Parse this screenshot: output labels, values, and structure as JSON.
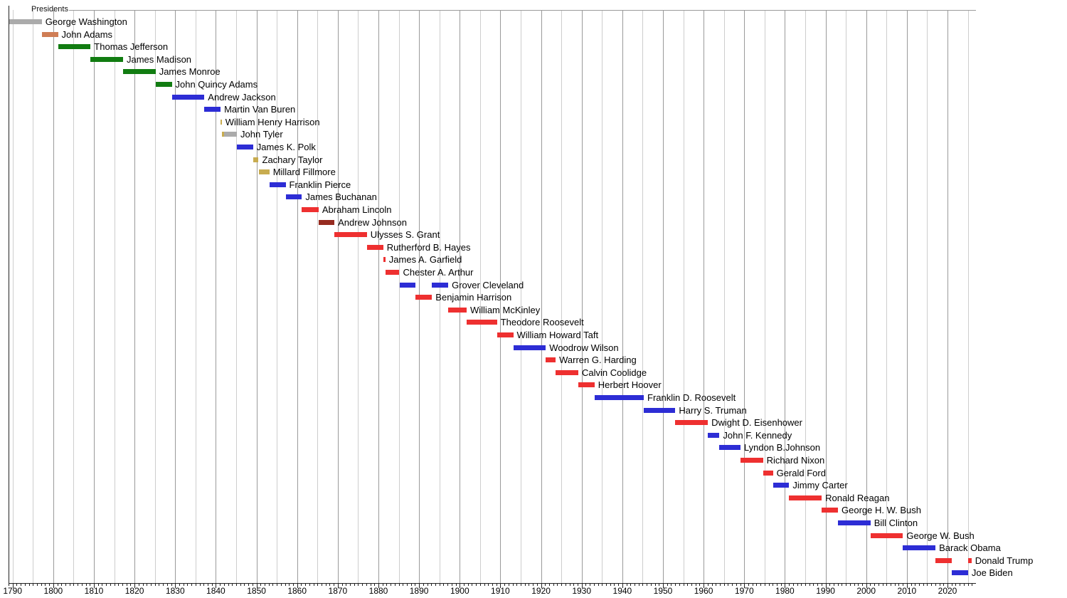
{
  "title": "Presidents",
  "axis": {
    "x_tick_labels": [
      "1790",
      "1800",
      "1810",
      "1820",
      "1830",
      "1840",
      "1850",
      "1860",
      "1870",
      "1880",
      "1890",
      "1900",
      "1910",
      "1920",
      "1930",
      "1940",
      "1950",
      "1960",
      "1970",
      "1980",
      "1990",
      "2000",
      "2010",
      "2020"
    ],
    "gridline_interval_years": 5,
    "minor_tick_interval_years": 1,
    "x_range_years": [
      1789,
      2027
    ]
  },
  "party_colors": {
    "independent": "#ababab",
    "federalist": "#cf7d55",
    "democratic_republican": "#117c11",
    "democratic": "#2d2dd5",
    "whig": "#c8ac50",
    "republican": "#ee3030",
    "national_union": "#962b20"
  },
  "chart_data": {
    "type": "bar",
    "layout": "gantt-timeline",
    "title": "Presidents",
    "xlabel": "",
    "ylabel": "",
    "x_range": [
      1789,
      2027
    ],
    "x_major_ticks": [
      1790,
      1800,
      1810,
      1820,
      1830,
      1840,
      1850,
      1860,
      1870,
      1880,
      1890,
      1900,
      1910,
      1920,
      1930,
      1940,
      1950,
      1960,
      1970,
      1980,
      1990,
      2000,
      2010,
      2020
    ],
    "grid": true,
    "rows": [
      {
        "name": "George Washington",
        "segments": [
          {
            "start": 1789.1,
            "end": 1797.17,
            "party": "independent"
          }
        ]
      },
      {
        "name": "John Adams",
        "segments": [
          {
            "start": 1797.17,
            "end": 1801.17,
            "party": "federalist"
          }
        ]
      },
      {
        "name": "Thomas Jefferson",
        "segments": [
          {
            "start": 1801.17,
            "end": 1809.17,
            "party": "democratic_republican"
          }
        ]
      },
      {
        "name": "James Madison",
        "segments": [
          {
            "start": 1809.17,
            "end": 1817.17,
            "party": "democratic_republican"
          }
        ]
      },
      {
        "name": "James Monroe",
        "segments": [
          {
            "start": 1817.17,
            "end": 1825.17,
            "party": "democratic_republican"
          }
        ]
      },
      {
        "name": "John Quincy Adams",
        "segments": [
          {
            "start": 1825.17,
            "end": 1829.17,
            "party": "democratic_republican"
          }
        ]
      },
      {
        "name": "Andrew Jackson",
        "segments": [
          {
            "start": 1829.17,
            "end": 1837.17,
            "party": "democratic"
          }
        ]
      },
      {
        "name": "Martin Van Buren",
        "segments": [
          {
            "start": 1837.17,
            "end": 1841.17,
            "party": "democratic"
          }
        ]
      },
      {
        "name": "William Henry Harrison",
        "segments": [
          {
            "start": 1841.17,
            "end": 1841.45,
            "party": "whig"
          }
        ]
      },
      {
        "name": "John Tyler",
        "segments": [
          {
            "start": 1841.45,
            "end": 1842.1,
            "party": "whig"
          },
          {
            "start": 1842.1,
            "end": 1845.17,
            "party": "independent"
          }
        ]
      },
      {
        "name": "James K. Polk",
        "segments": [
          {
            "start": 1845.17,
            "end": 1849.17,
            "party": "democratic"
          }
        ]
      },
      {
        "name": "Zachary Taylor",
        "segments": [
          {
            "start": 1849.17,
            "end": 1850.52,
            "party": "whig"
          }
        ]
      },
      {
        "name": "Millard Fillmore",
        "segments": [
          {
            "start": 1850.52,
            "end": 1853.17,
            "party": "whig"
          }
        ]
      },
      {
        "name": "Franklin Pierce",
        "segments": [
          {
            "start": 1853.17,
            "end": 1857.17,
            "party": "democratic"
          }
        ]
      },
      {
        "name": "James Buchanan",
        "segments": [
          {
            "start": 1857.17,
            "end": 1861.17,
            "party": "democratic"
          }
        ]
      },
      {
        "name": "Abraham Lincoln",
        "segments": [
          {
            "start": 1861.17,
            "end": 1865.29,
            "party": "republican"
          }
        ]
      },
      {
        "name": "Andrew Johnson",
        "segments": [
          {
            "start": 1865.29,
            "end": 1869.17,
            "party": "national_union"
          }
        ]
      },
      {
        "name": "Ulysses S. Grant",
        "segments": [
          {
            "start": 1869.17,
            "end": 1877.17,
            "party": "republican"
          }
        ]
      },
      {
        "name": "Rutherford B. Hayes",
        "segments": [
          {
            "start": 1877.17,
            "end": 1881.17,
            "party": "republican"
          }
        ]
      },
      {
        "name": "James A. Garfield",
        "segments": [
          {
            "start": 1881.17,
            "end": 1881.72,
            "party": "republican"
          }
        ]
      },
      {
        "name": "Chester A. Arthur",
        "segments": [
          {
            "start": 1881.72,
            "end": 1885.17,
            "party": "republican"
          }
        ]
      },
      {
        "name": "Grover Cleveland",
        "segments": [
          {
            "start": 1885.17,
            "end": 1889.17,
            "party": "democratic"
          },
          {
            "start": 1893.17,
            "end": 1897.17,
            "party": "democratic"
          }
        ]
      },
      {
        "name": "Benjamin Harrison",
        "segments": [
          {
            "start": 1889.17,
            "end": 1893.17,
            "party": "republican"
          }
        ]
      },
      {
        "name": "William McKinley",
        "segments": [
          {
            "start": 1897.17,
            "end": 1901.7,
            "party": "republican"
          }
        ]
      },
      {
        "name": "Theodore Roosevelt",
        "segments": [
          {
            "start": 1901.7,
            "end": 1909.17,
            "party": "republican"
          }
        ]
      },
      {
        "name": "William Howard Taft",
        "segments": [
          {
            "start": 1909.17,
            "end": 1913.17,
            "party": "republican"
          }
        ]
      },
      {
        "name": "Woodrow Wilson",
        "segments": [
          {
            "start": 1913.17,
            "end": 1921.17,
            "party": "democratic"
          }
        ]
      },
      {
        "name": "Warren G. Harding",
        "segments": [
          {
            "start": 1921.17,
            "end": 1923.59,
            "party": "republican"
          }
        ]
      },
      {
        "name": "Calvin Coolidge",
        "segments": [
          {
            "start": 1923.59,
            "end": 1929.17,
            "party": "republican"
          }
        ]
      },
      {
        "name": "Herbert Hoover",
        "segments": [
          {
            "start": 1929.17,
            "end": 1933.17,
            "party": "republican"
          }
        ]
      },
      {
        "name": "Franklin D. Roosevelt",
        "segments": [
          {
            "start": 1933.17,
            "end": 1945.28,
            "party": "democratic"
          }
        ]
      },
      {
        "name": "Harry S. Truman",
        "segments": [
          {
            "start": 1945.28,
            "end": 1953.05,
            "party": "democratic"
          }
        ]
      },
      {
        "name": "Dwight D. Eisenhower",
        "segments": [
          {
            "start": 1953.05,
            "end": 1961.05,
            "party": "republican"
          }
        ]
      },
      {
        "name": "John F. Kennedy",
        "segments": [
          {
            "start": 1961.05,
            "end": 1963.9,
            "party": "democratic"
          }
        ]
      },
      {
        "name": "Lyndon B.Johnson",
        "segments": [
          {
            "start": 1963.9,
            "end": 1969.05,
            "party": "democratic"
          }
        ]
      },
      {
        "name": "Richard Nixon",
        "segments": [
          {
            "start": 1969.05,
            "end": 1974.6,
            "party": "republican"
          }
        ]
      },
      {
        "name": "Gerald Ford",
        "segments": [
          {
            "start": 1974.6,
            "end": 1977.05,
            "party": "republican"
          }
        ]
      },
      {
        "name": "Jimmy Carter",
        "segments": [
          {
            "start": 1977.05,
            "end": 1981.05,
            "party": "democratic"
          }
        ]
      },
      {
        "name": "Ronald Reagan",
        "segments": [
          {
            "start": 1981.05,
            "end": 1989.05,
            "party": "republican"
          }
        ]
      },
      {
        "name": "George H. W. Bush",
        "segments": [
          {
            "start": 1989.05,
            "end": 1993.05,
            "party": "republican"
          }
        ]
      },
      {
        "name": "Bill Clinton",
        "segments": [
          {
            "start": 1993.05,
            "end": 2001.05,
            "party": "democratic"
          }
        ]
      },
      {
        "name": "George W. Bush",
        "segments": [
          {
            "start": 2001.05,
            "end": 2009.05,
            "party": "republican"
          }
        ]
      },
      {
        "name": "Barack Obama",
        "segments": [
          {
            "start": 2009.05,
            "end": 2017.05,
            "party": "democratic"
          }
        ]
      },
      {
        "name": "Donald Trump",
        "segments": [
          {
            "start": 2017.05,
            "end": 2021.05,
            "party": "republican"
          },
          {
            "start": 2025.05,
            "end": 2025.9,
            "party": "republican"
          }
        ]
      },
      {
        "name": "Joe Biden",
        "segments": [
          {
            "start": 2021.05,
            "end": 2025.05,
            "party": "democratic"
          }
        ]
      }
    ]
  }
}
